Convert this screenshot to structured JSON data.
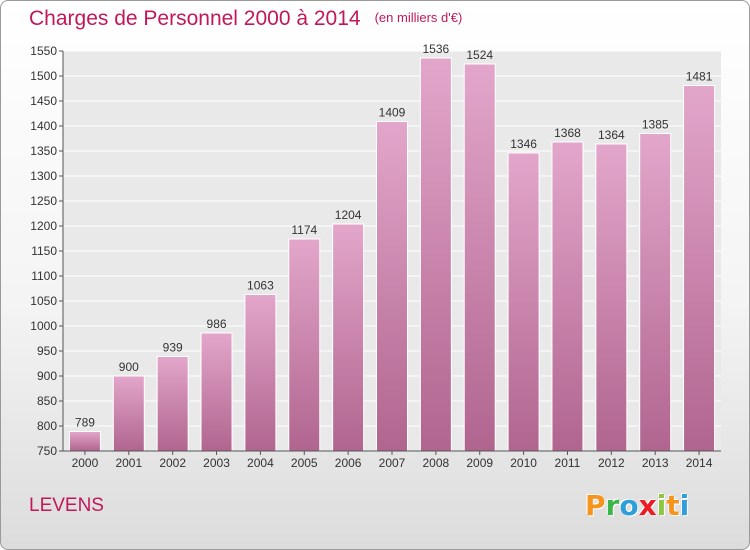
{
  "chart_data": {
    "type": "bar",
    "title": "Charges de Personnel 2000 à 2014",
    "subtitle": "(en milliers d'€)",
    "categories": [
      "2000",
      "2001",
      "2002",
      "2003",
      "2004",
      "2005",
      "2006",
      "2007",
      "2008",
      "2009",
      "2010",
      "2011",
      "2012",
      "2013",
      "2014"
    ],
    "values": [
      789,
      900,
      939,
      986,
      1063,
      1174,
      1204,
      1409,
      1536,
      1524,
      1346,
      1368,
      1364,
      1385,
      1481
    ],
    "ylim": [
      750,
      1550
    ],
    "yticks": [
      750,
      800,
      850,
      900,
      950,
      1000,
      1050,
      1100,
      1150,
      1200,
      1250,
      1300,
      1350,
      1400,
      1450,
      1500,
      1550
    ],
    "grid": true,
    "bar_color_top": "#e3a6cb",
    "bar_color_bottom": "#b0658f"
  },
  "location": "LEVENS",
  "logo": {
    "letters": [
      "P",
      "r",
      "o",
      "x",
      "i",
      "t",
      "i"
    ],
    "colors": [
      "#f7941d",
      "#39b54a",
      "#2e9fd8",
      "#ed1c24",
      "#8dc63f",
      "#f7941d",
      "#2e9fd8"
    ]
  },
  "colors": {
    "accent": "#c2185b"
  }
}
